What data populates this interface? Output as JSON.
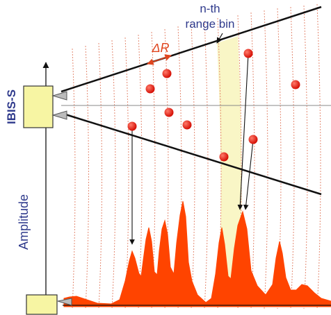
{
  "labels": {
    "device": "IBIS-S",
    "y_axis": "Amplitude",
    "range_bin": "n-th",
    "range_bin_2": "range bin",
    "delta_r": "ΔR"
  },
  "colors": {
    "device_fill": "#f7f5a3",
    "bin_fill": "#f9f6c6",
    "arc": "#e48a72",
    "target": "#e8160a",
    "signal": "#ff4400",
    "label_blue": "#2f3a8c",
    "delta_r": "#e0451e"
  }
}
